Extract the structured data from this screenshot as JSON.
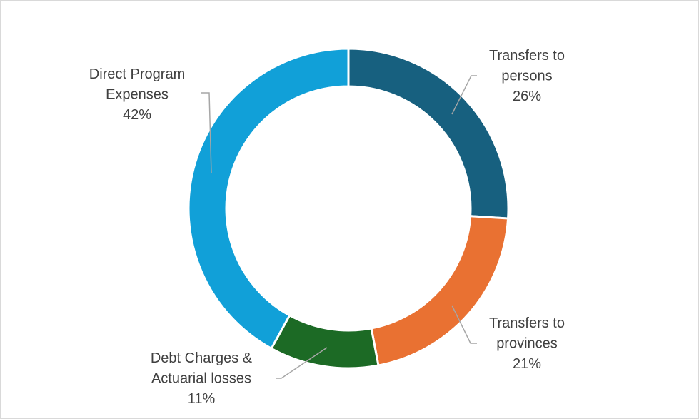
{
  "chart_data": {
    "type": "pie",
    "style": "donut",
    "title": "",
    "slices": [
      {
        "label_lines": [
          "Transfers to",
          "persons"
        ],
        "value": 26,
        "value_label": "26%",
        "color": "#17607F"
      },
      {
        "label_lines": [
          "Transfers to",
          "provinces"
        ],
        "value": 21,
        "value_label": "21%",
        "color": "#E97132"
      },
      {
        "label_lines": [
          "Debt Charges &",
          "Actuarial losses"
        ],
        "value": 11,
        "value_label": "11%",
        "color": "#1C6A25"
      },
      {
        "label_lines": [
          "Direct Program",
          "Expenses"
        ],
        "value": 42,
        "value_label": "42%",
        "color": "#11A0D8"
      }
    ],
    "legend": "none",
    "data_labels": "outside with leader lines"
  },
  "colors": {
    "frame_border": "#d9d9d9",
    "label_text": "#404040",
    "leader_line": "#a6a6a6",
    "slice_separator": "#ffffff"
  }
}
